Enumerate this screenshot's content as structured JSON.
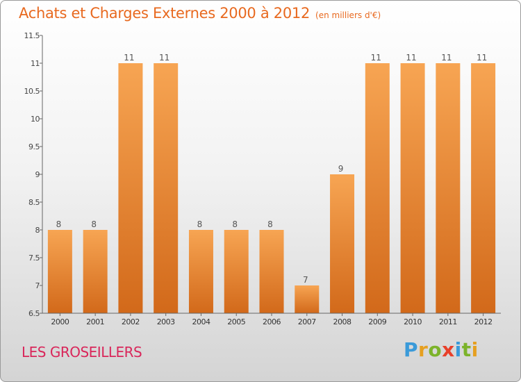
{
  "header": {
    "title": "Achats et Charges Externes 2000 à 2012",
    "subtitle": "(en milliers d'€)"
  },
  "footer": {
    "location": "LES GROSEILLERS",
    "logo_letters": [
      "P",
      "r",
      "o",
      "x",
      "i",
      "t",
      "i"
    ],
    "logo_colors": [
      "#3a9ad9",
      "#e6a020",
      "#7cb32a",
      "#e8402a",
      "#3a9ad9",
      "#7cb32a",
      "#e6a020"
    ]
  },
  "colors": {
    "bar_light": "#f7a553",
    "bar_dark": "#d2691a",
    "title": "#e8691f",
    "location": "#d9265a"
  },
  "chart_data": {
    "type": "bar",
    "title": "Achats et Charges Externes 2000 à 2012",
    "subtitle": "(en milliers d'€)",
    "categories": [
      "2000",
      "2001",
      "2002",
      "2003",
      "2004",
      "2005",
      "2006",
      "2007",
      "2008",
      "2009",
      "2010",
      "2011",
      "2012"
    ],
    "values": [
      8,
      8,
      11,
      11,
      8,
      8,
      8,
      7,
      9,
      11,
      11,
      11,
      11
    ],
    "data_labels": [
      "8",
      "8",
      "11",
      "11",
      "8",
      "8",
      "8",
      "7",
      "9",
      "11",
      "11",
      "11",
      "11"
    ],
    "ylim": [
      6.5,
      11.5
    ],
    "yticks": [
      "6.5",
      "7",
      "7.5",
      "8",
      "8.5",
      "9",
      "9.5",
      "10",
      "10.5",
      "11",
      "11.5"
    ],
    "grid": false,
    "legend": "none"
  }
}
